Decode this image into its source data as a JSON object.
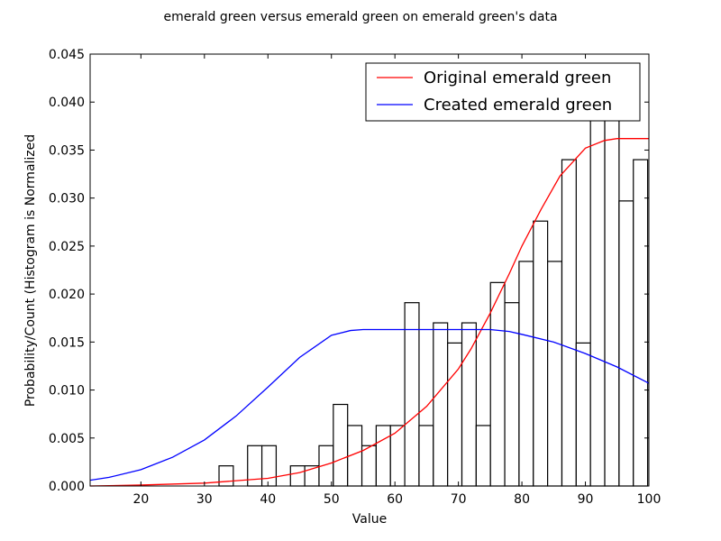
{
  "chart_data": {
    "type": "bar",
    "title": "emerald green versus emerald green on emerald green's data",
    "xlabel": "Value",
    "ylabel": "Probability/Count (Histogram is Normalized",
    "xlim": [
      12,
      100
    ],
    "ylim": [
      0,
      0.045
    ],
    "xticks": [
      20,
      30,
      40,
      50,
      60,
      70,
      80,
      90,
      100
    ],
    "yticks": [
      0.0,
      0.005,
      0.01,
      0.015,
      0.02,
      0.025,
      0.03,
      0.035,
      0.04,
      0.045
    ],
    "xtick_labels": [
      "20",
      "30",
      "40",
      "50",
      "60",
      "70",
      "80",
      "90",
      "100"
    ],
    "ytick_labels": [
      "0.000",
      "0.005",
      "0.010",
      "0.015",
      "0.020",
      "0.025",
      "0.030",
      "0.035",
      "0.040",
      "0.045"
    ],
    "histogram": {
      "bin_start": 32.3,
      "bin_width": 2.25,
      "values": [
        0.0021,
        0.0,
        0.0042,
        0.0042,
        0.0,
        0.0021,
        0.0021,
        0.0042,
        0.0085,
        0.0063,
        0.0042,
        0.0063,
        0.0063,
        0.0191,
        0.0063,
        0.017,
        0.0149,
        0.017,
        0.0063,
        0.0212,
        0.0191,
        0.0234,
        0.0276,
        0.0234,
        0.034,
        0.0149,
        0.0404,
        0.0404,
        0.0297,
        0.034
      ]
    },
    "series": [
      {
        "name": "Original emerald green",
        "color": "#ff0000",
        "x": [
          12,
          20,
          30,
          40,
          45,
          50,
          55,
          60,
          65,
          70,
          72,
          75,
          78,
          80,
          83,
          86,
          90,
          93,
          95,
          100
        ],
        "y": [
          0.0,
          0.0001,
          0.0003,
          0.0008,
          0.0014,
          0.0024,
          0.0037,
          0.0055,
          0.0083,
          0.0122,
          0.0143,
          0.018,
          0.0221,
          0.025,
          0.0288,
          0.0323,
          0.0352,
          0.036,
          0.0362,
          0.0362
        ]
      },
      {
        "name": "Created emerald green",
        "color": "#0000ff",
        "x": [
          12,
          15,
          20,
          25,
          30,
          35,
          40,
          45,
          50,
          53,
          55,
          60,
          70,
          75,
          78,
          80,
          85,
          90,
          95,
          100
        ],
        "y": [
          0.0006,
          0.0009,
          0.0017,
          0.003,
          0.0048,
          0.0073,
          0.0103,
          0.0134,
          0.0157,
          0.0162,
          0.0163,
          0.0163,
          0.0163,
          0.0163,
          0.0161,
          0.0158,
          0.015,
          0.0138,
          0.0124,
          0.0107
        ]
      }
    ],
    "legend_placement": "upper-right",
    "grid": false
  }
}
